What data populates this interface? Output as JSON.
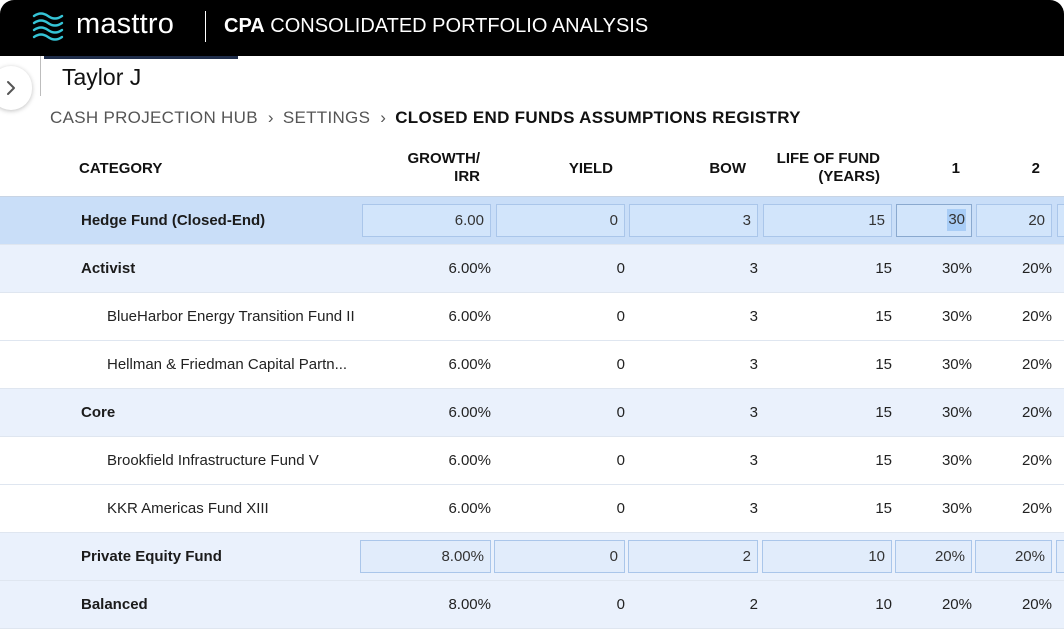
{
  "header": {
    "brand": "masttro",
    "title_bold": "CPA",
    "title_rest": " CONSOLIDATED PORTFOLIO ANALYSIS",
    "accent_color": "#1f2d4a",
    "logo_icon": "masttro-logo-icon"
  },
  "user": {
    "name": "Taylor J"
  },
  "breadcrumb": {
    "items": [
      "CASH PROJECTION HUB",
      "SETTINGS"
    ],
    "separator": "›",
    "current": "CLOSED END FUNDS ASSUMPTIONS REGISTRY"
  },
  "table": {
    "columns": {
      "category": "CATEGORY",
      "growth_line1": "GROWTH/",
      "growth_line2": "IRR",
      "yield": "YIELD",
      "bow": "BOW",
      "life_line1": "LIFE OF FUND",
      "life_line2": "(YEARS)",
      "y1": "1",
      "y2": "2"
    },
    "rows": [
      {
        "name": "Hedge Fund (Closed-End)",
        "growth": "6.00",
        "yield": "0",
        "bow": "3",
        "life": "15",
        "y1": "30",
        "y2": "20"
      },
      {
        "name": "Activist",
        "growth": "6.00%",
        "yield": "0",
        "bow": "3",
        "life": "15",
        "y1": "30%",
        "y2": "20%"
      },
      {
        "name": "BlueHarbor Energy Transition Fund II",
        "growth": "6.00%",
        "yield": "0",
        "bow": "3",
        "life": "15",
        "y1": "30%",
        "y2": "20%"
      },
      {
        "name": "Hellman & Friedman Capital Partn...",
        "growth": "6.00%",
        "yield": "0",
        "bow": "3",
        "life": "15",
        "y1": "30%",
        "y2": "20%"
      },
      {
        "name": "Core",
        "growth": "6.00%",
        "yield": "0",
        "bow": "3",
        "life": "15",
        "y1": "30%",
        "y2": "20%"
      },
      {
        "name": "Brookfield Infrastructure Fund V",
        "growth": "6.00%",
        "yield": "0",
        "bow": "3",
        "life": "15",
        "y1": "30%",
        "y2": "20%"
      },
      {
        "name": "KKR Americas Fund XIII",
        "growth": "6.00%",
        "yield": "0",
        "bow": "3",
        "life": "15",
        "y1": "30%",
        "y2": "20%"
      },
      {
        "name": "Private Equity Fund",
        "growth": "8.00%",
        "yield": "0",
        "bow": "2",
        "life": "10",
        "y1": "20%",
        "y2": "20%"
      },
      {
        "name": "Balanced",
        "growth": "8.00%",
        "yield": "0",
        "bow": "2",
        "life": "10",
        "y1": "20%",
        "y2": "20%"
      }
    ]
  },
  "colors": {
    "selected_row": "#c9def8",
    "group_row": "#eaf1fc",
    "header_bg": "#000000"
  }
}
